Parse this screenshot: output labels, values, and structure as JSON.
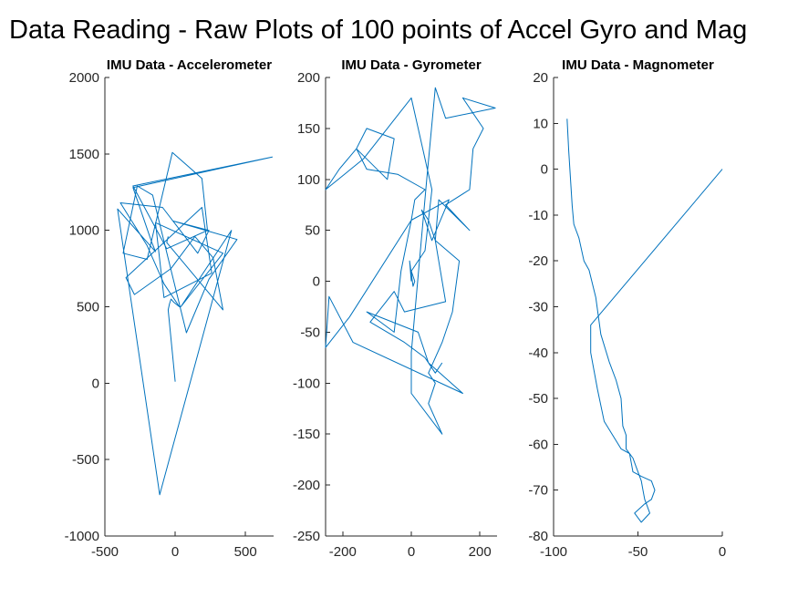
{
  "figure": {
    "suptitle": "Data Reading - Raw Plots of 100 points of Accel Gyro and Mag",
    "line_color": "#0072BD"
  },
  "chart_data": [
    {
      "type": "line",
      "title": "IMU Data - Accelerometer",
      "xlabel": "",
      "ylabel": "",
      "xlim": [
        -500,
        700
      ],
      "ylim": [
        -1000,
        2000
      ],
      "xticks": [
        -500,
        0,
        500
      ],
      "yticks": [
        -1000,
        -500,
        0,
        500,
        1000,
        1500,
        2000
      ],
      "grid": false,
      "series": [
        {
          "x": [
            0,
            -50,
            -40,
            -30,
            -10,
            30,
            -80,
            -200,
            -390,
            -90,
            160,
            240,
            -10,
            440,
            240,
            80,
            -160,
            -270,
            -370,
            -200,
            -20,
            190,
            230,
            -60,
            -300,
            690,
            -300,
            -170,
            -140,
            -410,
            -110,
            400,
            40,
            340,
            -140,
            -80,
            260,
            190,
            -350,
            -290,
            -30,
            140,
            270,
            340,
            -60,
            -50
          ],
          "y": [
            10,
            480,
            520,
            550,
            530,
            500,
            650,
            900,
            1180,
            1150,
            850,
            1000,
            1060,
            940,
            680,
            330,
            1230,
            1290,
            850,
            810,
            1510,
            1340,
            1000,
            880,
            1290,
            1480,
            1280,
            930,
            860,
            1140,
            -730,
            1000,
            500,
            850,
            1050,
            560,
            720,
            1150,
            690,
            580,
            750,
            960,
            820,
            480,
            920,
            960
          ]
        }
      ]
    },
    {
      "type": "line",
      "title": "IMU Data - Gyrometer",
      "xlabel": "",
      "ylabel": "",
      "xlim": [
        -250,
        250
      ],
      "ylim": [
        -250,
        200
      ],
      "xticks": [
        -200,
        0,
        200
      ],
      "yticks": [
        -250,
        -200,
        -150,
        -100,
        -50,
        0,
        50,
        100,
        150,
        200
      ],
      "grid": false,
      "series": [
        {
          "x": [
            0,
            -5,
            5,
            10,
            0,
            40,
            60,
            0,
            -70,
            -140,
            -250,
            -210,
            -160,
            -70,
            -50,
            -130,
            -160,
            -130,
            -40,
            40,
            10,
            0,
            -180,
            -250,
            -240,
            -170,
            150,
            50,
            20,
            -130,
            -50,
            -30,
            0,
            110,
            60,
            30,
            50,
            70,
            140,
            120,
            90,
            50,
            70,
            50,
            90,
            0,
            0,
            45,
            70,
            100,
            245,
            150,
            210,
            180,
            170,
            100,
            170,
            80,
            70,
            100,
            -20,
            -50,
            -120,
            -20,
            40,
            70,
            90
          ],
          "y": [
            0,
            20,
            -5,
            0,
            10,
            30,
            90,
            180,
            150,
            120,
            90,
            110,
            130,
            100,
            140,
            150,
            130,
            110,
            105,
            90,
            80,
            60,
            -35,
            -65,
            -15,
            -60,
            -110,
            -80,
            -50,
            -30,
            -50,
            10,
            60,
            80,
            40,
            70,
            60,
            40,
            20,
            -30,
            -60,
            -90,
            -100,
            -120,
            -150,
            -110,
            -70,
            100,
            190,
            160,
            170,
            180,
            150,
            130,
            90,
            75,
            50,
            80,
            40,
            -20,
            -30,
            -10,
            -40,
            -60,
            -75,
            -90,
            -80
          ]
        }
      ]
    },
    {
      "type": "line",
      "title": "IMU Data - Magnometer",
      "xlabel": "",
      "ylabel": "",
      "xlim": [
        -100,
        0
      ],
      "ylim": [
        -80,
        20
      ],
      "xticks": [
        -100,
        -50,
        0
      ],
      "yticks": [
        -80,
        -70,
        -60,
        -50,
        -40,
        -30,
        -20,
        -10,
        0,
        10,
        20
      ],
      "grid": false,
      "series": [
        {
          "x": [
            0,
            -78,
            -78,
            -74,
            -70,
            -60,
            -55,
            -53,
            -48,
            -42,
            -40,
            -42,
            -46,
            -52,
            -50,
            -48,
            -43,
            -45,
            -46,
            -47,
            -48,
            -50,
            -53,
            -55,
            -57,
            -57,
            -59,
            -60,
            -63,
            -67,
            -72,
            -75,
            -79,
            -82,
            -85,
            -88,
            -89,
            -90,
            -91,
            -92
          ],
          "y": [
            0,
            -34,
            -40,
            -48,
            -55,
            -61,
            -62,
            -66,
            -67,
            -68,
            -70,
            -72,
            -73,
            -75,
            -76,
            -77,
            -75,
            -73,
            -72,
            -70,
            -68,
            -66,
            -63,
            -62,
            -61,
            -58,
            -56,
            -50,
            -46,
            -42,
            -36,
            -28,
            -22,
            -20,
            -15,
            -12,
            -8,
            -2,
            4,
            11
          ]
        }
      ]
    }
  ]
}
